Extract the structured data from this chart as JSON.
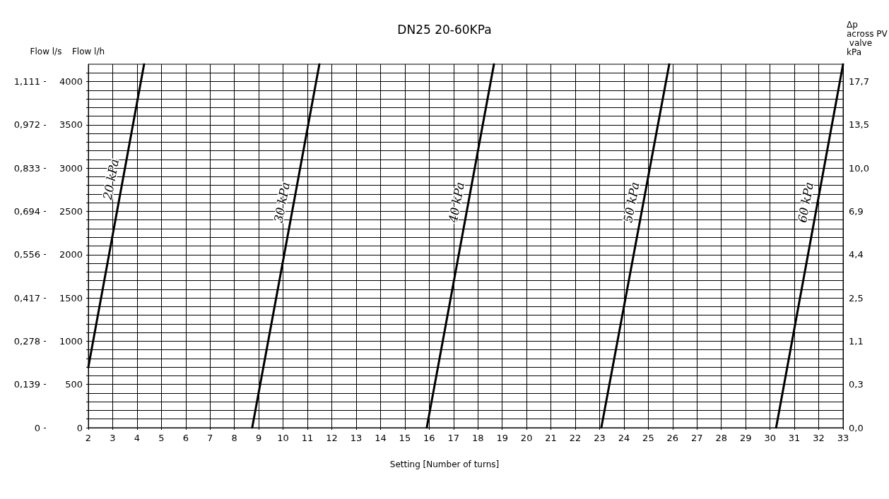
{
  "chart_data": {
    "type": "line",
    "title": "DN25 20-60KPa",
    "xlabel": "Setting [Number of turns]",
    "ylabel": "Flow l/h",
    "y3label": "Flow l/s",
    "y2label": "Δp across PV valve kPa",
    "xlim": [
      2,
      33
    ],
    "xticks": [
      2,
      3,
      4,
      5,
      6,
      7,
      8,
      9,
      10,
      11,
      12,
      13,
      14,
      15,
      16,
      17,
      18,
      19,
      20,
      21,
      22,
      23,
      24,
      25,
      26,
      27,
      28,
      29,
      30,
      31,
      32,
      33
    ],
    "ylim": [
      0,
      4200
    ],
    "yticks": [
      0,
      {
        "value": 100,
        "label": null
      },
      {
        "value": 200,
        "label": null
      },
      {
        "value": 300,
        "label": null
      },
      {
        "value": 400,
        "label": null
      },
      500,
      {
        "value": 600,
        "label": null
      },
      {
        "value": 700,
        "label": null
      },
      {
        "value": 800,
        "label": null
      },
      {
        "value": 900,
        "label": null
      },
      1000,
      {
        "value": 1100,
        "label": null
      },
      {
        "value": 1200,
        "label": null
      },
      {
        "value": 1300,
        "label": null
      },
      {
        "value": 1400,
        "label": null
      },
      1500,
      {
        "value": 1600,
        "label": null
      },
      {
        "value": 1700,
        "label": null
      },
      {
        "value": 1800,
        "label": null
      },
      {
        "value": 1900,
        "label": null
      },
      2000,
      {
        "value": 2100,
        "label": null
      },
      {
        "value": 2200,
        "label": null
      },
      {
        "value": 2300,
        "label": null
      },
      {
        "value": 2400,
        "label": null
      },
      2500,
      {
        "value": 2600,
        "label": null
      },
      {
        "value": 2700,
        "label": null
      },
      {
        "value": 2800,
        "label": null
      },
      {
        "value": 2900,
        "label": null
      },
      3000,
      {
        "value": 3100,
        "label": null
      },
      {
        "value": 3200,
        "label": null
      },
      {
        "value": 3300,
        "label": null
      },
      {
        "value": 3400,
        "label": null
      },
      3500,
      {
        "value": 3600,
        "label": null
      },
      {
        "value": 3700,
        "label": null
      },
      {
        "value": 3800,
        "label": null
      },
      {
        "value": 3900,
        "label": null
      },
      4000,
      {
        "value": 4100,
        "label": null
      }
    ],
    "y3lim": [
      0,
      1.1667
    ],
    "y3ticks": [
      0,
      {
        "value": 0.1389,
        "label": "0,139"
      },
      {
        "value": 0.2778,
        "label": "0,278"
      },
      {
        "value": 0.4167,
        "label": "0,417"
      },
      {
        "value": 0.5556,
        "label": "0,556"
      },
      {
        "value": 0.6944,
        "label": "0,694"
      },
      {
        "value": 0.8333,
        "label": "0,833"
      },
      {
        "value": 0.9722,
        "label": "0,972"
      },
      {
        "value": 1.1111,
        "label": "1,111"
      }
    ],
    "y2_categories": [
      null,
      null,
      "17,7",
      null,
      null,
      null,
      null,
      "13,5",
      null,
      null,
      null,
      null,
      "10,0",
      null,
      null,
      null,
      null,
      "6,9",
      null,
      null,
      null,
      null,
      "4,4",
      null,
      null,
      null,
      null,
      "2,5",
      null,
      null,
      null,
      null,
      "1,1",
      null,
      null,
      null,
      null,
      "0,3",
      null,
      null,
      null,
      null,
      "0,0"
    ],
    "grid": true,
    "legend": false,
    "marker": "none",
    "line_style": "solid",
    "series": [
      {
        "name": "20 kPa",
        "color": "#000000",
        "x": [
          2,
          4.29
        ],
        "values": [
          700,
          4200
        ]
      },
      {
        "name": "30 kPa",
        "color": "#000000",
        "x": [
          8.73,
          11.49
        ],
        "values": [
          0,
          4200
        ]
      },
      {
        "name": "40 kPa",
        "color": "#000000",
        "x": [
          15.9,
          18.66
        ],
        "values": [
          0,
          4200
        ]
      },
      {
        "name": "50 kPa",
        "color": "#000000",
        "x": [
          23.07,
          25.86
        ],
        "values": [
          0,
          4200
        ]
      },
      {
        "name": "60 kPa",
        "color": "#000000",
        "x": [
          30.25,
          33
        ],
        "values": [
          0,
          4200
        ]
      }
    ]
  }
}
